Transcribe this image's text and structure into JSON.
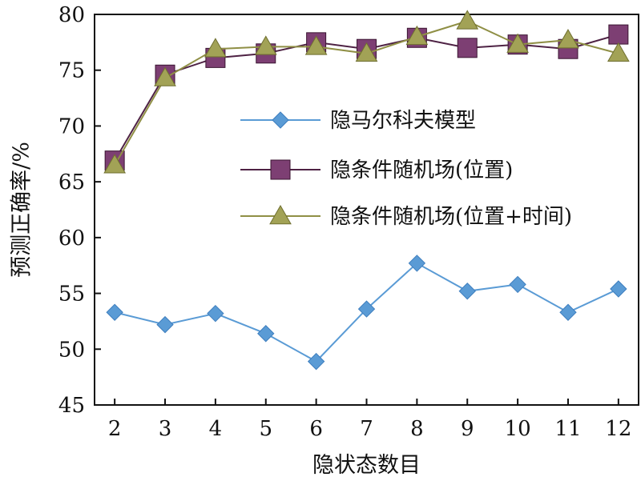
{
  "chart_data": {
    "type": "line",
    "title": "",
    "xlabel": "隐状态数目",
    "ylabel": "预测正确率/%",
    "x": [
      2,
      3,
      4,
      5,
      6,
      7,
      8,
      9,
      10,
      11,
      12
    ],
    "xlim": [
      1.6,
      12.4
    ],
    "ylim": [
      45,
      80
    ],
    "yticks": [
      45,
      50,
      55,
      60,
      65,
      70,
      75,
      80
    ],
    "grid": false,
    "legend_position": "center-right",
    "series": [
      {
        "name": "隐马尔科夫模型",
        "marker": "diamond",
        "line_color": "#5a9bd5",
        "marker_color": "#5a9bd5",
        "values": [
          53.3,
          52.2,
          53.2,
          51.4,
          48.9,
          53.6,
          57.7,
          55.2,
          55.8,
          53.3,
          55.4
        ]
      },
      {
        "name": "隐条件随机场(位置)",
        "marker": "square",
        "line_color": "#4e2244",
        "marker_color": "#7d3f73",
        "values": [
          66.9,
          74.6,
          76.1,
          76.5,
          77.5,
          76.9,
          77.9,
          77.0,
          77.3,
          76.9,
          78.2
        ]
      },
      {
        "name": "隐条件随机场(位置+时间)",
        "marker": "triangle",
        "line_color": "#8f8f45",
        "marker_color": "#a2a256",
        "values": [
          66.5,
          74.3,
          76.9,
          77.1,
          77.1,
          76.5,
          78.0,
          79.4,
          77.3,
          77.7,
          76.5
        ]
      }
    ]
  }
}
